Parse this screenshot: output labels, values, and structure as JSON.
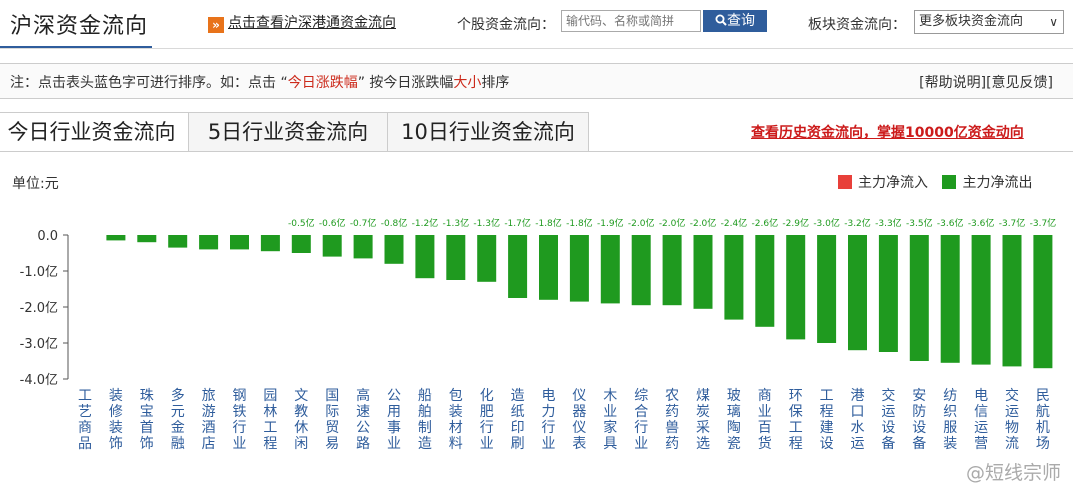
{
  "header": {
    "title": "沪深资金流向",
    "hk_link_icon": "»",
    "hk_link": "点击查看沪深港通资金流向",
    "stock_label": "个股资金流向：",
    "stock_placeholder": "输代码、名称或简拼",
    "query_button": "查询",
    "query_icon": "search-icon",
    "sector_label": "板块资金流向：",
    "sector_select": "更多板块资金流向",
    "chevron": "∨"
  },
  "note": {
    "prefix": "注：点击表头蓝色字可进行排序。如：点击 “",
    "highlight": "今日涨跌幅",
    "middle": "” 按今日涨跌幅",
    "highlight2": "大小",
    "suffix": "排序"
  },
  "help": {
    "help_link": "[帮助说明]",
    "feedback_link": "[意见反馈]"
  },
  "tabs": [
    "今日行业资金流向",
    "5日行业资金流向",
    "10日行业资金流向"
  ],
  "history_link": "查看历史资金流向，掌握10000亿资金动向",
  "unit": "单位:元",
  "legend": {
    "inflow": "主力净流入",
    "outflow": "主力净流出",
    "inflow_color": "#e8403a",
    "outflow_color": "#1f9a1f"
  },
  "watermark": "@短线宗师",
  "chart_data": {
    "type": "bar",
    "ylabel": "单位:元",
    "ylim": [
      -4.0,
      0.0
    ],
    "yticks": [
      "0.0",
      "-1.0亿",
      "-2.0亿",
      "-3.0亿",
      "-4.0亿"
    ],
    "categories": [
      "工艺商品",
      "装修装饰",
      "珠宝首饰",
      "多元金融",
      "旅游酒店",
      "钢铁行业",
      "园林工程",
      "文教休闲",
      "国际贸易",
      "高速公路",
      "公用事业",
      "船舶制造",
      "包装材料",
      "化肥行业",
      "造纸印刷",
      "电力行业",
      "仪器仪表",
      "木业家具",
      "综合行业",
      "农药兽药",
      "煤炭采选",
      "玻璃陶瓷",
      "商业百货",
      "环保工程",
      "工程建设",
      "港口水运",
      "交运设备",
      "安防设备",
      "纺织服装",
      "电信运营",
      "交运物流",
      "民航机场"
    ],
    "values": [
      0,
      -0.15,
      -0.2,
      -0.35,
      -0.4,
      -0.4,
      -0.45,
      -0.5,
      -0.6,
      -0.65,
      -0.8,
      -1.2,
      -1.25,
      -1.3,
      -1.75,
      -1.8,
      -1.85,
      -1.9,
      -1.95,
      -1.95,
      -2.05,
      -2.35,
      -2.55,
      -2.9,
      -3.0,
      -3.2,
      -3.25,
      -3.5,
      -3.55,
      -3.6,
      -3.65,
      -3.7
    ],
    "labels": [
      "",
      "",
      "",
      "",
      "",
      "",
      "",
      "-0.5亿",
      "-0.6亿",
      "-0.7亿",
      "-0.8亿",
      "-1.2亿",
      "-1.3亿",
      "-1.3亿",
      "-1.7亿",
      "-1.8亿",
      "-1.8亿",
      "-1.9亿",
      "-2.0亿",
      "-2.0亿",
      "-2.0亿",
      "-2.4亿",
      "-2.6亿",
      "-2.9亿",
      "-3.0亿",
      "-3.2亿",
      "-3.3亿",
      "-3.5亿",
      "-3.6亿",
      "-3.6亿",
      "-3.7亿",
      "-3.7亿"
    ],
    "bar_color": "#1f9a1f",
    "grid": false
  }
}
